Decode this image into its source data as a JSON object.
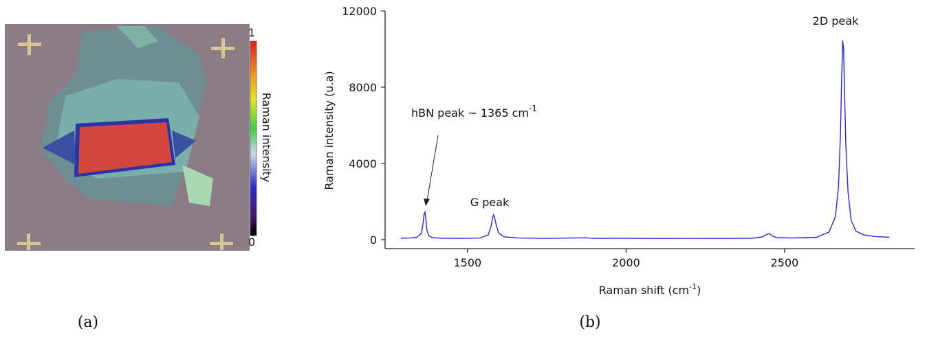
{
  "image_panel": {
    "caption": "(a)",
    "colorbar": {
      "max_label": "1",
      "min_label": "0",
      "label": "Raman intensity"
    }
  },
  "chart_data": {
    "type": "line",
    "caption": "(b)",
    "x_label": {
      "text": "Raman shift (cm",
      "sup": "-1",
      "end": ")"
    },
    "y_label": "Raman intensity (u.a)",
    "xlim": [
      1240,
      2910
    ],
    "xticks": [
      1500,
      2000,
      2500
    ],
    "ylim": [
      -470,
      12000
    ],
    "yticks": [
      0,
      4000,
      8000,
      12000
    ],
    "color": "#2626d9",
    "x": [
      1290,
      1320,
      1340,
      1355,
      1360,
      1363,
      1366,
      1369,
      1372,
      1378,
      1390,
      1420,
      1480,
      1540,
      1565,
      1574,
      1579,
      1582,
      1585,
      1590,
      1598,
      1615,
      1660,
      1750,
      1870,
      1900,
      2000,
      2100,
      2200,
      2300,
      2400,
      2430,
      2445,
      2452,
      2460,
      2475,
      2520,
      2600,
      2640,
      2660,
      2670,
      2676,
      2680,
      2683,
      2686,
      2689,
      2693,
      2700,
      2710,
      2725,
      2750,
      2790,
      2830
    ],
    "values": [
      80,
      90,
      120,
      350,
      900,
      1350,
      1450,
      1000,
      500,
      200,
      100,
      80,
      70,
      90,
      250,
      700,
      1150,
      1300,
      1200,
      800,
      350,
      150,
      90,
      70,
      100,
      70,
      80,
      60,
      70,
      60,
      80,
      150,
      280,
      320,
      200,
      110,
      90,
      120,
      400,
      1200,
      2800,
      5500,
      8500,
      10450,
      10000,
      7800,
      5000,
      2500,
      1000,
      450,
      250,
      160,
      130
    ],
    "annotations": {
      "hbn": {
        "text": "hBN peak ~ 1365 cm",
        "sup": "-1"
      },
      "g": "G peak",
      "d2": "2D peak"
    }
  }
}
